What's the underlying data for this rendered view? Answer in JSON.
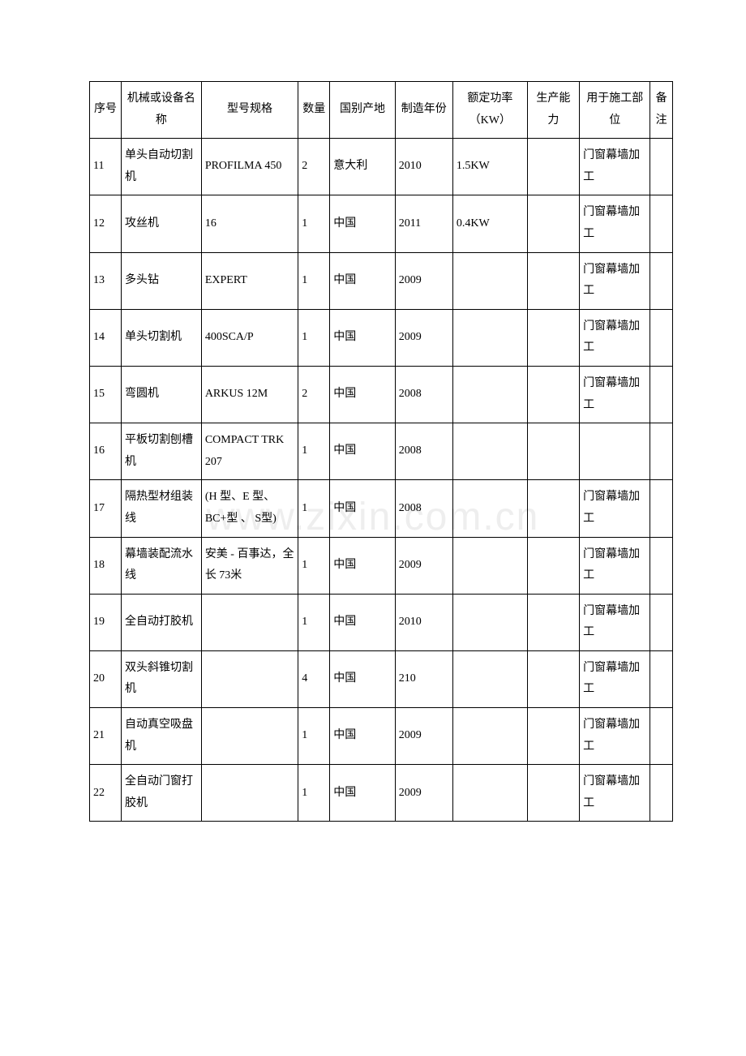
{
  "watermark": "www.zixin.com.cn",
  "table": {
    "headers": {
      "seq": "序号",
      "name": "机械或设备名称",
      "model": "型号规格",
      "qty": "数量",
      "origin": "国别产地",
      "year": "制造年份",
      "power": "额定功率（KW）",
      "capacity": "生产能力",
      "use": "用于施工部位",
      "note": "备注"
    },
    "rows": [
      {
        "seq": "11",
        "name": "单头自动切割机",
        "model": "PROFILMA 450",
        "qty": "2",
        "origin": "意大利",
        "year": "2010",
        "power": "1.5KW",
        "capacity": "",
        "use": "门窗幕墙加工",
        "note": ""
      },
      {
        "seq": "12",
        "name": "攻丝机",
        "model": "16",
        "qty": "1",
        "origin": "中国",
        "year": "2011",
        "power": "0.4KW",
        "capacity": "",
        "use": "门窗幕墙加工",
        "note": ""
      },
      {
        "seq": "13",
        "name": "多头钻",
        "model": "EXPERT",
        "qty": "1",
        "origin": "中国",
        "year": "2009",
        "power": "",
        "capacity": "",
        "use": "门窗幕墙加工",
        "note": ""
      },
      {
        "seq": "14",
        "name": "单头切割机",
        "model": "400SCA/P",
        "qty": "1",
        "origin": "中国",
        "year": "2009",
        "power": "",
        "capacity": "",
        "use": "门窗幕墙加工",
        "note": ""
      },
      {
        "seq": "15",
        "name": "弯圆机",
        "model": "ARKUS 12M",
        "qty": "2",
        "origin": "中国",
        "year": "2008",
        "power": "",
        "capacity": "",
        "use": "门窗幕墙加工",
        "note": ""
      },
      {
        "seq": "16",
        "name": "平板切割刨槽机",
        "model": "COMPACT TRK 207",
        "qty": "1",
        "origin": "中国",
        "year": "2008",
        "power": "",
        "capacity": "",
        "use": "",
        "note": ""
      },
      {
        "seq": "17",
        "name": "隔热型材组装线",
        "model": "(H 型、E 型、BC+型 、 S型)",
        "qty": "1",
        "origin": "中国",
        "year": "2008",
        "power": "",
        "capacity": "",
        "use": "门窗幕墙加工",
        "note": ""
      },
      {
        "seq": "18",
        "name": "幕墙装配流水线",
        "model": "安美 - 百事达，全长 73米",
        "qty": "1",
        "origin": "中国",
        "year": "2009",
        "power": "",
        "capacity": "",
        "use": "门窗幕墙加工",
        "note": ""
      },
      {
        "seq": "19",
        "name": "全自动打胶机",
        "model": "",
        "qty": "1",
        "origin": "中国",
        "year": "2010",
        "power": "",
        "capacity": "",
        "use": "门窗幕墙加工",
        "note": ""
      },
      {
        "seq": "20",
        "name": "双头斜锥切割机",
        "model": "",
        "qty": "4",
        "origin": "中国",
        "year": "210",
        "power": "",
        "capacity": "",
        "use": "门窗幕墙加工",
        "note": ""
      },
      {
        "seq": "21",
        "name": "自动真空吸盘机",
        "model": "",
        "qty": "1",
        "origin": "中国",
        "year": "2009",
        "power": "",
        "capacity": "",
        "use": "门窗幕墙加工",
        "note": ""
      },
      {
        "seq": "22",
        "name": "全自动门窗打胶机",
        "model": "",
        "qty": "1",
        "origin": "中国",
        "year": "2009",
        "power": "",
        "capacity": "",
        "use": "门窗幕墙加工",
        "note": ""
      }
    ]
  }
}
